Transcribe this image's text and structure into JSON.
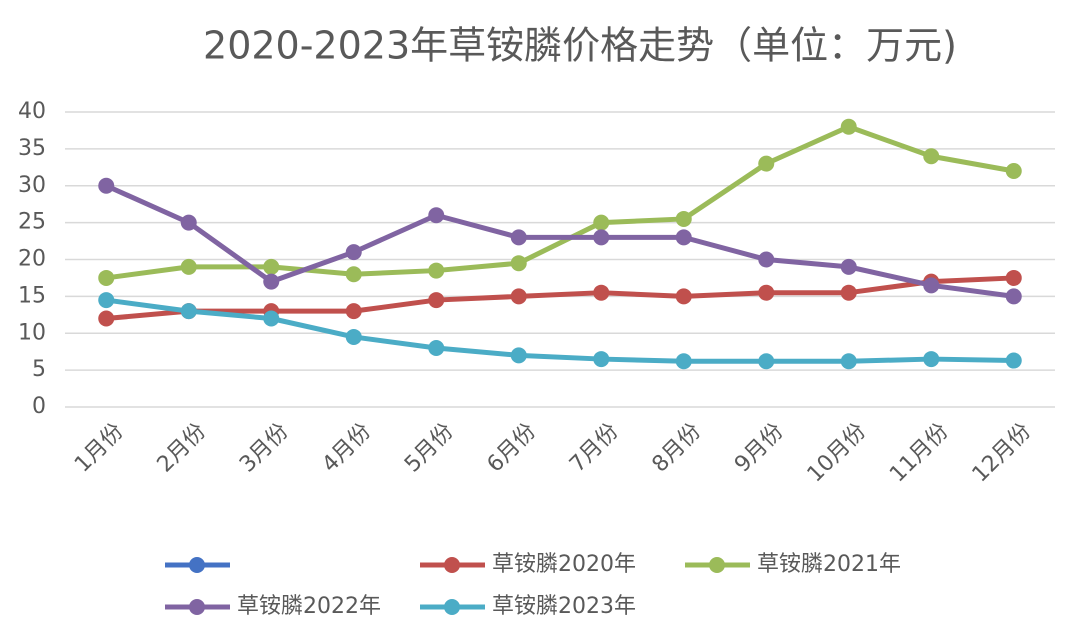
{
  "chart_data": {
    "type": "line",
    "title": "2020-2023年草铵膦价格走势（单位：万元)",
    "categories": [
      "1月份",
      "2月份",
      "3月份",
      "4月份",
      "5月份",
      "6月份",
      "7月份",
      "8月份",
      "9月份",
      "10月份",
      "11月份",
      "12月份"
    ],
    "series": [
      {
        "name": null,
        "color": "#4472c4",
        "values": [
          null,
          null,
          null,
          null,
          null,
          null,
          null,
          null,
          null,
          null,
          null,
          null
        ]
      },
      {
        "name": "草铵膦2020年",
        "color": "#c0504d",
        "values": [
          12,
          13,
          13,
          13,
          14.5,
          15,
          15.5,
          15,
          15.5,
          15.5,
          17,
          17.5
        ]
      },
      {
        "name": "草铵膦2021年",
        "color": "#9bbb59",
        "values": [
          17.5,
          19,
          19,
          18,
          18.5,
          19.5,
          25,
          25.5,
          33,
          38,
          34,
          32
        ]
      },
      {
        "name": "草铵膦2022年",
        "color": "#8064a2",
        "values": [
          30,
          25,
          17,
          21,
          26,
          23,
          23,
          23,
          20,
          19,
          16.5,
          15
        ]
      },
      {
        "name": "草铵膦2023年",
        "color": "#4bacc6",
        "values": [
          14.5,
          13,
          12,
          9.5,
          8,
          7,
          6.5,
          6.2,
          6.2,
          6.2,
          6.5,
          6.3
        ]
      }
    ],
    "ylim": [
      0,
      40
    ],
    "yticks": [
      0,
      5,
      10,
      15,
      20,
      25,
      30,
      35,
      40
    ],
    "grid": true,
    "legend": "bottom"
  }
}
